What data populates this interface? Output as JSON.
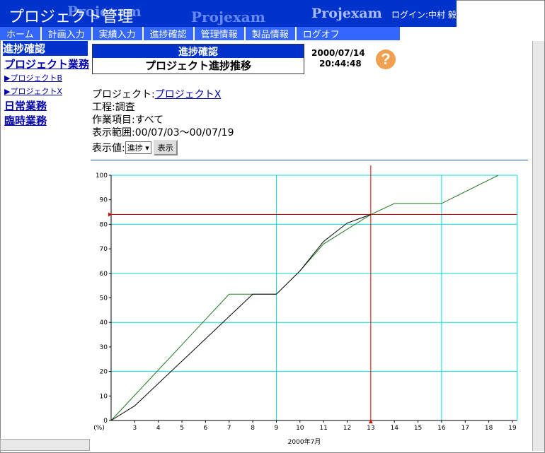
{
  "header": {
    "title": "プロジェクト管理",
    "watermark": "Projexam",
    "login": "ログイン:中村 毅"
  },
  "nav": [
    "ホーム",
    "計画入力",
    "実績入力",
    "進捗確認",
    "管理情報",
    "製品情報",
    "ログオフ"
  ],
  "sidebar": {
    "current": "進捗確認",
    "group": "プロジェクト業務",
    "projects": [
      "▶プロジェクトB",
      "▶プロジェクトX"
    ],
    "links": [
      "日常業務",
      "臨時業務"
    ]
  },
  "panel": {
    "title": "進捗確認",
    "subtitle": "プロジェクト進捗推移",
    "date": "2000/07/14",
    "time": "20:44:48"
  },
  "info": [
    {
      "label": "プロジェクト:",
      "value": "プロジェクトX"
    },
    {
      "label": "工程:",
      "value": "調査"
    },
    {
      "label": "作業項目:",
      "value": "すべて"
    },
    {
      "label": "表示範囲:",
      "value": "00/07/03〜00/07/19"
    }
  ],
  "controls": {
    "label": "表示値:",
    "select": "進捗",
    "button": "表示"
  },
  "chart": {
    "type": "line",
    "x_label": "2000年7月",
    "y_unit": "(%)",
    "xlim": [
      2,
      19.2
    ],
    "ylim": [
      0,
      100
    ],
    "xticks": [
      3,
      4,
      5,
      6,
      7,
      8,
      9,
      10,
      11,
      12,
      13,
      14,
      15,
      16,
      17,
      18,
      19
    ],
    "yticks": [
      0,
      10,
      20,
      30,
      40,
      50,
      60,
      70,
      80,
      90,
      100
    ],
    "xgrid": [
      9,
      16
    ],
    "ygrid": [
      20,
      40,
      60,
      80,
      100
    ],
    "grid_color": "#00dede",
    "series": [
      {
        "color": "#1f7a1f",
        "x": [
          2,
          7,
          9,
          10,
          11,
          12,
          13,
          14,
          16,
          18.4
        ],
        "values": [
          0,
          51.5,
          51.5,
          61,
          72,
          78,
          84,
          88.5,
          88.5,
          100
        ]
      },
      {
        "color": "#000000",
        "x": [
          2,
          3,
          8,
          9,
          10,
          11,
          12,
          13
        ],
        "values": [
          0,
          6,
          51.5,
          51.5,
          61,
          73,
          80.5,
          84
        ]
      }
    ],
    "marker": {
      "x": 13,
      "y": 84,
      "color": "#e00000"
    }
  }
}
